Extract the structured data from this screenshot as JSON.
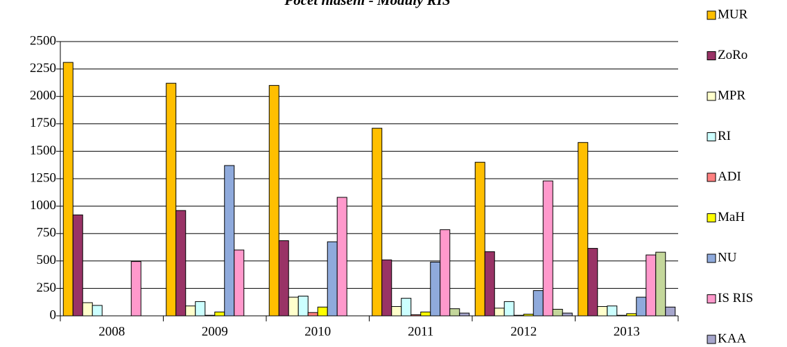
{
  "chart_data": {
    "type": "bar",
    "title": "Počet hlášení - Moduly RIS",
    "categories": [
      "2008",
      "2009",
      "2010",
      "2011",
      "2012",
      "2013"
    ],
    "series": [
      {
        "name": "MUR",
        "color": "#ffbf00",
        "values": [
          2310,
          2120,
          2100,
          1710,
          1400,
          1580
        ]
      },
      {
        "name": "ZoRo",
        "color": "#993366",
        "values": [
          920,
          960,
          685,
          510,
          585,
          615
        ]
      },
      {
        "name": "MPR",
        "color": "#ffffcc",
        "values": [
          120,
          90,
          170,
          85,
          70,
          85
        ]
      },
      {
        "name": "RI",
        "color": "#ccffff",
        "values": [
          95,
          130,
          180,
          160,
          130,
          90
        ]
      },
      {
        "name": "ADI",
        "color": "#ff8080",
        "values": [
          0,
          5,
          30,
          10,
          5,
          5
        ]
      },
      {
        "name": "MaH",
        "color": "#ffff00",
        "values": [
          0,
          35,
          80,
          35,
          15,
          20
        ]
      },
      {
        "name": "NU",
        "color": "#8faadc",
        "values": [
          0,
          1370,
          675,
          490,
          230,
          170
        ]
      },
      {
        "name": "IS RIS",
        "color": "#ff99cc",
        "values": [
          495,
          600,
          1080,
          785,
          1230,
          555
        ]
      },
      {
        "name": null,
        "color": "#c4d79b",
        "values": [
          0,
          0,
          0,
          65,
          60,
          580
        ]
      },
      {
        "name": "KAA",
        "color": "#a6a6cc",
        "values": [
          0,
          0,
          0,
          25,
          25,
          80
        ]
      }
    ],
    "ylim": [
      0,
      2500
    ],
    "yticks": [
      0,
      250,
      500,
      750,
      1000,
      1250,
      1500,
      1750,
      2000,
      2250,
      2500
    ],
    "grid": true,
    "legend": "right"
  }
}
